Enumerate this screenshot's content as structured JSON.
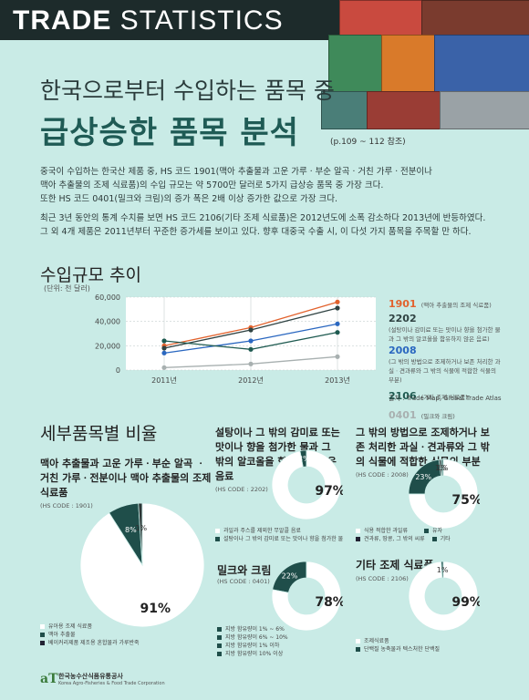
{
  "header": {
    "title_bold": "TRADE",
    "title_light": " STATISTICS"
  },
  "title": {
    "line1": "한국으로부터 수입하는 품목 중",
    "line2": "급상승한 품목 분석",
    "page_ref": "(p.109 ~ 112 참조)"
  },
  "intro": [
    "중국이 수입하는 한국산 제품 중, HS 코드 1901(맥아 추출물과 고운 가루ㆍ부순 알곡ㆍ거친 가루ㆍ전분이나",
    "맥아 추출물의 조제 식료품)의 수입 규모는 약 5700만 달러로 5가지 급상승 품목 중 가장 크다.",
    "또한 HS 코드 0401(밀크와 크림)의 증가 폭은 2배 이상 증가한 값으로 가장 크다.",
    "최근 3년 동안의 통계 수치를 보면 HS 코드 2106(기타 조제 식료품)은 2012년도에 소폭 감소하다 2013년에 반등하였다.",
    "그 외 4개 제품은 2011년부터 꾸준한 증가세를 보이고 있다. 향후 대중국 수출 시, 이 다섯 가지 품목을 주목할 만 하다."
  ],
  "line_section": {
    "heading": "수입규모 추이",
    "unit": "(단위: 천 달러)",
    "source": "출처 : Trade Map, Global Trade Atlas"
  },
  "legend": [
    {
      "code": "1901",
      "desc": "(맥아 추출물의 조제 식료품)",
      "color": "#e2622d"
    },
    {
      "code": "2202",
      "desc": "(설탕이나 감미료 또는 맛이나 향을 첨가한 물과 그 밖의 알코올을 함유하지 않은 음료)",
      "color": "#2f4242"
    },
    {
      "code": "2008",
      "desc": "(그 밖의 방법으로 조제하거나 보존 처리한 과실ㆍ견과류와 그 밖의 식물에 적합한 식물의 부분)",
      "color": "#2a67c0"
    },
    {
      "code": "2106",
      "desc": "(기타 조제 식료품)",
      "color": "#1e5a50"
    },
    {
      "code": "0401",
      "desc": "(밀크와 크림)",
      "color": "#a8b0b0"
    }
  ],
  "chart_data": [
    {
      "type": "line",
      "x": [
        "2011년",
        "2012년",
        "2013년"
      ],
      "ylim": [
        0,
        60000
      ],
      "yticks": [
        "0",
        "20,000",
        "40,000",
        "60,000"
      ],
      "grid": true,
      "series": [
        {
          "name": "1901",
          "values": [
            20000,
            35000,
            56000
          ]
        },
        {
          "name": "2202",
          "values": [
            18000,
            33000,
            51000
          ]
        },
        {
          "name": "2008",
          "values": [
            14000,
            24000,
            38000
          ]
        },
        {
          "name": "2106",
          "values": [
            24000,
            17000,
            31000
          ]
        },
        {
          "name": "0401",
          "values": [
            2000,
            5000,
            11000
          ]
        }
      ]
    },
    {
      "type": "pie",
      "title": "맥아 추출물과 고운 가루ㆍ부순 알곡 ㆍ거친 가루ㆍ전분이나 맥아 추출물의 조제 식료품",
      "hs": "(HS CODE : 1901)",
      "values": [
        91,
        8,
        1
      ],
      "labels": [
        "91%",
        "8%",
        "1%"
      ],
      "legend": [
        "유아용 조제 식료품",
        "맥아 추출물",
        "베이커리제품 제조용 혼합물과 가루반죽"
      ]
    },
    {
      "type": "pie",
      "title": "설탕이나 그 밖의 감미료 또는 맛이나 향을 첨가한 물과 그 밖의 알코올을 함유하지 않은 음료",
      "hs": "(HS CODE : 2202)",
      "values": [
        97,
        3
      ],
      "labels": [
        "97%",
        "3%"
      ],
      "legend": [
        "과일과 주스를 제외한 무알콜 음료",
        "설탕이나 그 밖의 감미료 또는 맛이나 향을 첨가한 물"
      ]
    },
    {
      "type": "pie",
      "title": "그 밖의 방법으로 조제하거나 보존 처리한 과실ㆍ견과류와 그 밖의 식물에 적합한 식물의 부분",
      "hs": "(HS CODE : 2008)",
      "values": [
        75,
        23,
        1,
        1
      ],
      "labels": [
        "75%",
        "23%",
        "1%",
        "1%"
      ],
      "legend": [
        "식용 적합한 과일류",
        "유자",
        "견과류, 땅콩, 그 밖의 씨류",
        "기타"
      ]
    },
    {
      "type": "pie",
      "title": "밀크와 크림",
      "hs": "(HS CODE : 0401)",
      "values": [
        78,
        22
      ],
      "labels": [
        "78%",
        "22%"
      ],
      "legend": [
        "지방 함유량이 1% ~ 6%",
        "지방 함유량이 6% ~ 10%",
        "지방 함유량이 1% 이하",
        "지방 함유량이 10% 이상"
      ]
    },
    {
      "type": "pie",
      "title": "기타 조제 식료품",
      "hs": "(HS CODE : 2106)",
      "values": [
        99,
        1
      ],
      "labels": [
        "99%",
        "1%"
      ],
      "legend": [
        "조제식료품",
        "단백질 농축물과 텍스처한 단백질"
      ]
    }
  ],
  "pie_section": {
    "heading": "세부품목별 비율"
  },
  "footer": {
    "logo": "aT",
    "org": "한국농수산식품유통공사",
    "org_en": "Korea Agro-Fisheries & Food Trade Corporation"
  },
  "colors": {
    "dark": "#1f4e4a",
    "light": "#ffffff",
    "bg": "#c9ebe6"
  }
}
